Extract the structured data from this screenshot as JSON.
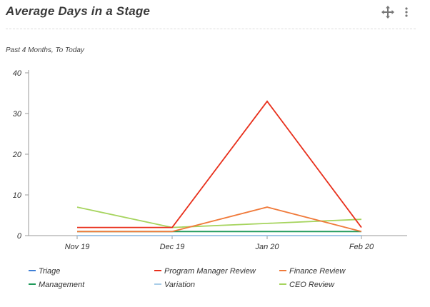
{
  "widget": {
    "title": "Average Days in a Stage",
    "subtitle": "Past 4 Months, To Today",
    "icons": {
      "move": "move-icon",
      "more": "more-vertical-icon"
    }
  },
  "chart_data": {
    "type": "line",
    "title": "Average Days in a Stage",
    "subtitle": "Past 4 Months, To Today",
    "xlabel": "",
    "ylabel": "",
    "categories": [
      "Nov 19",
      "Dec 19",
      "Jan 20",
      "Feb 20"
    ],
    "ylim": [
      0,
      40
    ],
    "yticks": [
      0,
      10,
      20,
      30,
      40
    ],
    "grid": false,
    "legend_placement": "bottom",
    "series": [
      {
        "name": "Triage",
        "color": "#3f7fd6",
        "values": [
          0,
          0,
          0,
          0
        ]
      },
      {
        "name": "Program Manager Review",
        "color": "#e8301c",
        "values": [
          2,
          2,
          33,
          2
        ]
      },
      {
        "name": "Finance Review",
        "color": "#f07a3a",
        "values": [
          1,
          1,
          7,
          1
        ]
      },
      {
        "name": "Management",
        "color": "#1f9a5a",
        "values": [
          1,
          1,
          1,
          1
        ]
      },
      {
        "name": "Variation",
        "color": "#a9cde8",
        "values": [
          0,
          0,
          0,
          0
        ]
      },
      {
        "name": "CEO Review",
        "color": "#a6d45e",
        "values": [
          7,
          2,
          3,
          4
        ]
      }
    ]
  }
}
